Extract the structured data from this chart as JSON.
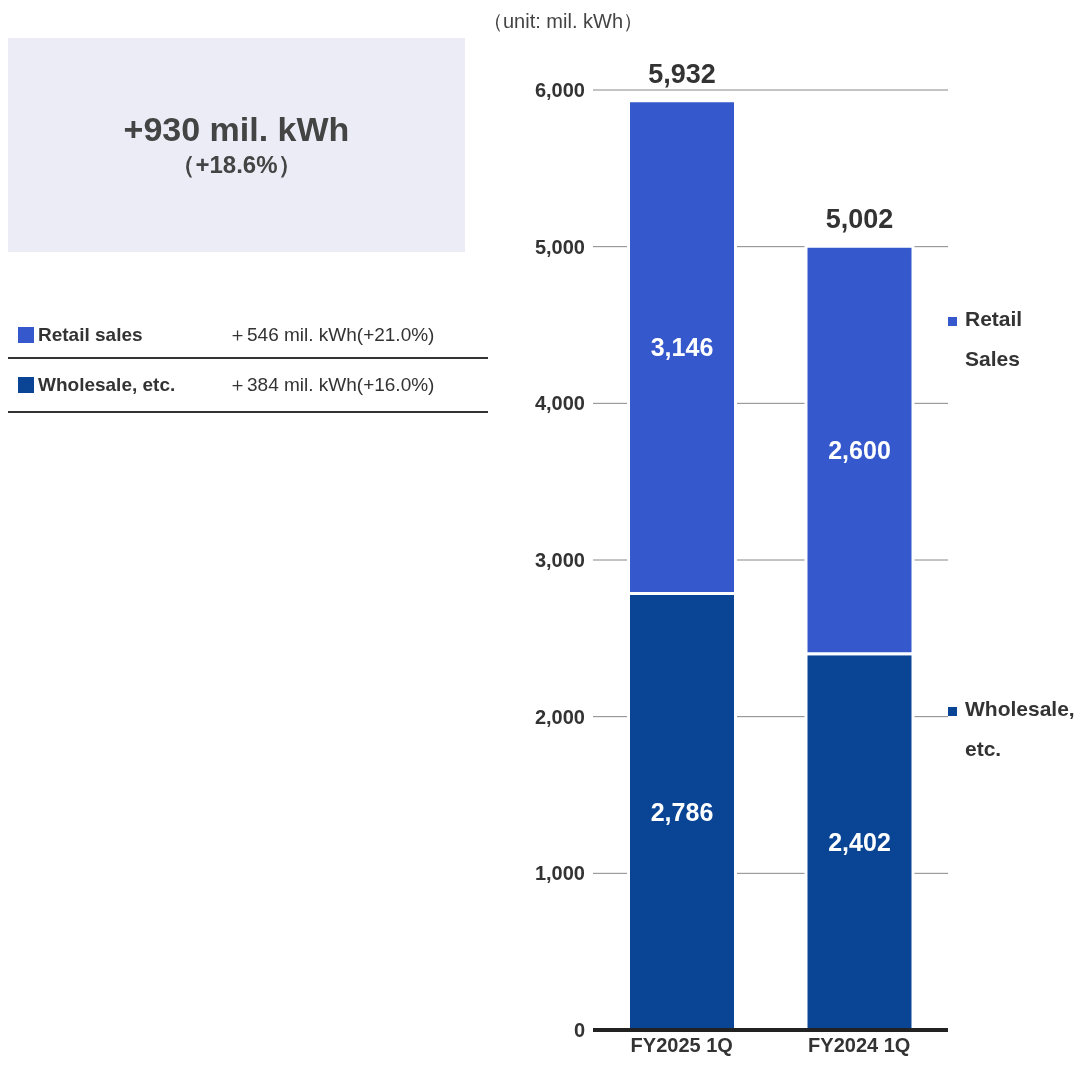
{
  "chart_data": {
    "type": "bar",
    "stacked": true,
    "ylabel": "（unit: mil. kWh）",
    "categories": [
      "FY2025 1Q",
      "FY2024 1Q"
    ],
    "series": [
      {
        "name": "Wholesale, etc.",
        "color": "#0a4494",
        "values": [
          2786,
          2402
        ],
        "value_labels": [
          "2,786",
          "2,402"
        ]
      },
      {
        "name": "Retail Sales",
        "color": "#3559cc",
        "values": [
          3146,
          2600
        ],
        "value_labels": [
          "3,146",
          "2,600"
        ]
      }
    ],
    "totals": [
      "5,932",
      "5,002"
    ],
    "ylim": [
      0,
      6000
    ],
    "yticks": [
      0,
      {
        "value": 1000,
        "label": "1,000"
      },
      {
        "value": 2000,
        "label": "2,000"
      },
      {
        "value": 3000,
        "label": "3,000"
      },
      {
        "value": 4000,
        "label": "4,000"
      },
      {
        "value": 5000,
        "label": "5,000"
      },
      {
        "value": 6000,
        "label": "6,000"
      }
    ],
    "grid": "y",
    "legend": "right",
    "annotations": [
      "+930 mil. kWh",
      "（+18.6%）",
      "Retail sales",
      "＋546 mil. kWh(+21.0%)",
      "Wholesale, etc.",
      "＋384 mil. kWh(+16.0%)"
    ]
  }
}
